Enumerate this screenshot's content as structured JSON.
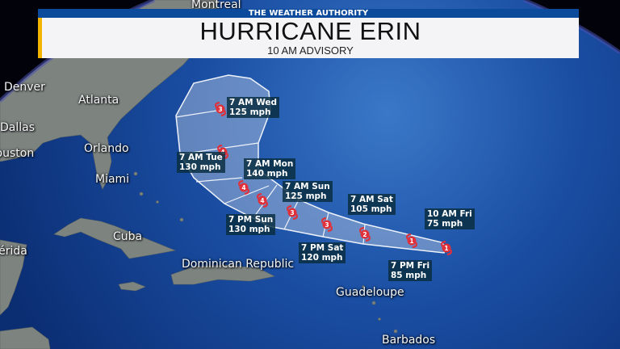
{
  "header": {
    "brand": "THE WEATHER AUTHORITY",
    "title": "HURRICANE ERIN",
    "subtitle": "10 AM ADVISORY",
    "accent_color": "#f2b400",
    "bar_color": "#0c4a9c"
  },
  "cities": [
    "Montreal",
    "Denver",
    "Atlanta",
    "Dallas",
    "Houston",
    "Orlando",
    "Miami",
    "Cuba",
    "Mérida",
    "Dominican Republic",
    "Guadeloupe",
    "Barbados"
  ],
  "forecast_points": [
    {
      "time": "10 AM Fri",
      "wind": "75 mph",
      "category": "1"
    },
    {
      "time": "7 PM Fri",
      "wind": "85 mph",
      "category": "1"
    },
    {
      "time": "7 AM Sat",
      "wind": "105 mph",
      "category": "2"
    },
    {
      "time": "7 PM Sat",
      "wind": "120 mph",
      "category": "3"
    },
    {
      "time": "7 AM Sun",
      "wind": "125 mph",
      "category": "3"
    },
    {
      "time": "7 PM Sun",
      "wind": "130 mph",
      "category": "4"
    },
    {
      "time": "7 AM Mon",
      "wind": "140 mph",
      "category": "4"
    },
    {
      "time": "7 AM Tue",
      "wind": "130 mph",
      "category": "4"
    },
    {
      "time": "7 AM Wed",
      "wind": "125 mph",
      "category": "3"
    }
  ],
  "colors": {
    "ocean": "#14439a",
    "land": "#7d8480",
    "cone": "#c9d3e6",
    "marker": "#e0303a"
  }
}
